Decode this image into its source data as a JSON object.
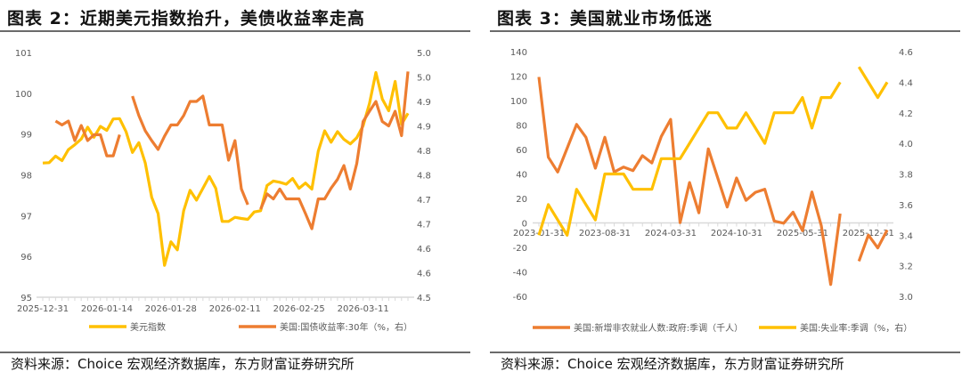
{
  "chart_data": [
    {
      "type": "line",
      "title": "图表 2：近期美元指数抬升，美债收益率走高",
      "x_tick_labels": [
        "2025-12-31",
        "2026-01-14",
        "2026-01-28",
        "2026-02-11",
        "2026-02-25",
        "2026-03-11"
      ],
      "x_tick_every": 10,
      "y_left": {
        "lim": [
          95,
          101
        ],
        "ticks": [
          "95",
          "96",
          "97",
          "98",
          "99",
          "100",
          "101"
        ]
      },
      "y_right": {
        "lim": [
          4.5,
          5.0
        ],
        "ticks": [
          "4.5",
          "4.6",
          "4.6",
          "4.7",
          "4.7",
          "4.8",
          "4.8",
          "4.9",
          "4.9",
          "5.0",
          "5.0"
        ]
      },
      "legend_position": "bottom",
      "series": [
        {
          "name": "美元指数",
          "axis": "left",
          "color": "#FFC000",
          "values": [
            98.29,
            98.3,
            98.46,
            98.35,
            98.62,
            98.74,
            98.88,
            99.17,
            98.92,
            99.19,
            99.09,
            99.37,
            99.38,
            99.06,
            98.55,
            98.79,
            98.29,
            97.45,
            97.05,
            95.78,
            96.36,
            96.16,
            97.12,
            97.62,
            97.38,
            97.67,
            97.96,
            97.67,
            96.86,
            96.86,
            96.96,
            96.93,
            96.91,
            97.09,
            97.12,
            97.74,
            97.85,
            97.82,
            97.77,
            97.91,
            97.67,
            97.8,
            97.65,
            98.58,
            99.08,
            98.8,
            99.06,
            98.87,
            98.76,
            98.91,
            99.2,
            99.75,
            100.51,
            99.86,
            99.57,
            100.29,
            99.24,
            99.51
          ]
        },
        {
          "name": "美国:国债收益率:30年（%，右）",
          "axis": "right",
          "color": "#ED7D31",
          "values": [
            null,
            null,
            4.86,
            4.852,
            4.86,
            4.82,
            4.851,
            4.82,
            4.832,
            4.832,
            4.789,
            4.789,
            4.832,
            null,
            4.911,
            4.871,
            4.84,
            4.82,
            4.802,
            4.829,
            4.852,
            4.852,
            4.871,
            4.9,
            4.9,
            4.911,
            4.852,
            4.852,
            4.852,
            4.78,
            4.82,
            4.721,
            4.689,
            null,
            4.68,
            4.711,
            4.701,
            4.721,
            4.701,
            4.701,
            4.701,
            4.671,
            4.64,
            4.701,
            4.701,
            4.723,
            4.741,
            4.769,
            4.721,
            4.773,
            4.859,
            4.88,
            4.9,
            4.859,
            4.85,
            4.88,
            4.83,
            4.961
          ]
        }
      ]
    },
    {
      "type": "line",
      "title": "图表 3：美国就业市场低迷",
      "x_tick_labels": [
        "2023-01-31",
        "2023-08-31",
        "2024-03-31",
        "2024-10-31",
        "2025-05-31",
        "2025-12-31"
      ],
      "x_tick_every": 7,
      "y_left": {
        "lim": [
          -60,
          140
        ],
        "ticks": [
          "-60",
          "-40",
          "-20",
          "0",
          "20",
          "40",
          "60",
          "80",
          "100",
          "120",
          "140"
        ]
      },
      "y_right": {
        "lim": [
          3.0,
          4.6
        ],
        "ticks": [
          "3.0",
          "3.2",
          "3.4",
          "3.6",
          "3.8",
          "4.0",
          "4.2",
          "4.4",
          "4.6"
        ]
      },
      "legend_position": "bottom",
      "series": [
        {
          "name": "美国:新增非农就业人数:政府:季调（千人）",
          "axis": "left",
          "color": "#ED7D31",
          "values": [
            119.3,
            53.7,
            41.6,
            61,
            80.5,
            70,
            44.7,
            70,
            41.6,
            45.7,
            42.8,
            55,
            49,
            70.7,
            84.6,
            0.2,
            33,
            8.3,
            60.5,
            36.7,
            13,
            36.7,
            18.5,
            25,
            27.5,
            1.5,
            -0.2,
            8.8,
            -6.3,
            25.3,
            -2.2,
            -50.3,
            7.6,
            null,
            -31.3,
            -9.9,
            -20.4,
            -5.8
          ]
        },
        {
          "name": "美国:失业率:季调（%，右）",
          "axis": "right",
          "color": "#FFC000",
          "values": [
            3.4,
            3.6,
            3.5,
            3.4,
            3.7,
            3.6,
            3.5,
            3.8,
            3.8,
            3.8,
            3.7,
            3.7,
            3.7,
            3.9,
            3.9,
            3.9,
            4.0,
            4.1,
            4.2,
            4.2,
            4.1,
            4.1,
            4.2,
            4.1,
            4.0,
            4.2,
            4.2,
            4.2,
            4.3,
            4.1,
            4.3,
            4.3,
            4.4,
            null,
            4.5,
            4.4,
            4.3,
            4.4
          ]
        }
      ]
    }
  ],
  "source": "资料来源：Choice 宏观经济数据库，东方财富证券研究所"
}
